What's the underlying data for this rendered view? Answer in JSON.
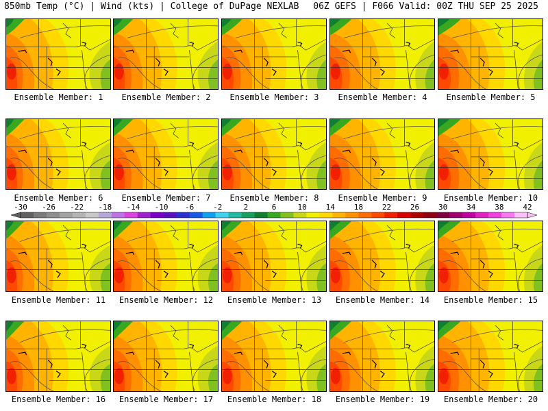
{
  "header": {
    "left_title": "850mb Temp (°C) | Wind (kts) | College of DuPage NEXLAB",
    "right_title": "06Z GEFS | F066 Valid: 00Z THU SEP 25 2025"
  },
  "colorbar": {
    "labels": [
      "-30",
      "-26",
      "-22",
      "-18",
      "-14",
      "-10",
      "-6",
      "-2",
      "2",
      "6",
      "10",
      "14",
      "18",
      "22",
      "26",
      "30",
      "34",
      "38",
      "42"
    ],
    "colors": [
      "#606060",
      "#7a7a7a",
      "#8e8e8e",
      "#a2a2a2",
      "#b4b4b4",
      "#c8c8c8",
      "#b5a8d8",
      "#c070e8",
      "#e040e0",
      "#a020d0",
      "#7a00c8",
      "#5a10c0",
      "#2830d0",
      "#1858e8",
      "#10a0f0",
      "#40d0f0",
      "#20b8a0",
      "#18a060",
      "#108030",
      "#38a820",
      "#80c020",
      "#c8d818",
      "#f0f000",
      "#ffd800",
      "#ffb400",
      "#ff9000",
      "#ff6c00",
      "#ff4800",
      "#f02000",
      "#d80000",
      "#b00000",
      "#900010",
      "#800040",
      "#a00070",
      "#c000a0",
      "#e020c0",
      "#f040e0",
      "#f878f0",
      "#fcc0f8"
    ],
    "caption_prefix": "Ensemble Member:"
  },
  "members": [
    {
      "label": "Ensemble Member: 1"
    },
    {
      "label": "Ensemble Member: 2"
    },
    {
      "label": "Ensemble Member: 3"
    },
    {
      "label": "Ensemble Member: 4"
    },
    {
      "label": "Ensemble Member: 5"
    },
    {
      "label": "Ensemble Member: 6"
    },
    {
      "label": "Ensemble Member: 7"
    },
    {
      "label": "Ensemble Member: 8"
    },
    {
      "label": "Ensemble Member: 9"
    },
    {
      "label": "Ensemble Member: 10"
    },
    {
      "label": "Ensemble Member: 11"
    },
    {
      "label": "Ensemble Member: 12"
    },
    {
      "label": "Ensemble Member: 13"
    },
    {
      "label": "Ensemble Member: 14"
    },
    {
      "label": "Ensemble Member: 15"
    },
    {
      "label": "Ensemble Member: 16"
    },
    {
      "label": "Ensemble Member: 17"
    },
    {
      "label": "Ensemble Member: 18"
    },
    {
      "label": "Ensemble Member: 19"
    },
    {
      "label": "Ensemble Member: 20"
    }
  ]
}
